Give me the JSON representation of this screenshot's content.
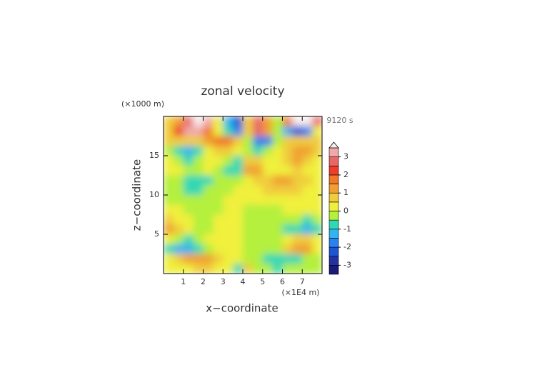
{
  "chart_data": {
    "type": "contour",
    "title": "zonal velocity",
    "y_unit": "(×1000 m)",
    "time_label": "9120 s",
    "x_unit": "(×1E4 m)",
    "xlabel": "x−coordinate",
    "ylabel": "z−coordinate",
    "xlim": [
      0,
      8
    ],
    "ylim": [
      0,
      20
    ],
    "xticks": [
      1,
      2,
      3,
      4,
      5,
      6,
      7
    ],
    "yticks": [
      5,
      10,
      15
    ],
    "x": [
      0.25,
      0.75,
      1.25,
      1.75,
      2.25,
      2.75,
      3.25,
      3.75,
      4.25,
      4.75,
      5.25,
      5.75,
      6.25,
      6.75,
      7.25,
      7.75
    ],
    "y": [
      19.375,
      18.125,
      16.875,
      15.625,
      14.375,
      13.125,
      11.875,
      10.625,
      9.375,
      8.125,
      6.875,
      5.625,
      4.375,
      3.125,
      1.875,
      0.625
    ],
    "z": [
      [
        0.5,
        1,
        2.5,
        3.6,
        3,
        0,
        -1.5,
        -2.5,
        0.5,
        2.5,
        1,
        -0.5,
        1.5,
        3.6,
        3.6,
        2.5
      ],
      [
        0.5,
        2,
        3,
        3,
        1.5,
        0,
        -1,
        -2,
        0.5,
        2.5,
        1,
        -0.5,
        -1.5,
        -2.5,
        -2,
        0
      ],
      [
        0.5,
        0.5,
        0.5,
        0.5,
        1,
        1.5,
        1.5,
        0.5,
        -0.5,
        -2,
        -2,
        -0.5,
        0.5,
        0.5,
        0.5,
        0.5
      ],
      [
        -0.5,
        -1,
        -1.5,
        -1,
        0,
        0.5,
        0.5,
        0,
        -0.5,
        -1,
        -0.5,
        0,
        0.5,
        1,
        1,
        0.5
      ],
      [
        0,
        -0.5,
        -1,
        -0.5,
        0,
        0,
        -0.5,
        -1,
        0.5,
        0.5,
        0,
        0,
        0.5,
        1,
        0.5,
        0
      ],
      [
        0,
        0,
        -0.5,
        -0.3,
        0,
        -0.3,
        -1,
        -1,
        1,
        1,
        0.3,
        0,
        0.3,
        0.5,
        0.3,
        0
      ],
      [
        -0.3,
        -0.5,
        -1,
        -1,
        -0.8,
        -0.5,
        -0.3,
        -0.2,
        0.2,
        0.5,
        0.8,
        1,
        1,
        0.8,
        0.5,
        0.3
      ],
      [
        -0.3,
        -0.5,
        -0.8,
        -0.8,
        -0.5,
        -0.3,
        -0.2,
        0.2,
        0.2,
        0.3,
        0.6,
        0.8,
        0.8,
        0.5,
        0.3,
        0.3
      ],
      [
        -0.2,
        -0.2,
        -0.2,
        -0.2,
        -0.2,
        -0.2,
        0.2,
        0.2,
        0.2,
        0.2,
        0.2,
        0.2,
        0.2,
        0.2,
        0.2,
        0.2
      ],
      [
        0.2,
        0.2,
        -0.2,
        -0.2,
        -0.2,
        -0.2,
        0.2,
        0.2,
        -0.2,
        -0.2,
        -0.2,
        -0.2,
        0.2,
        0.2,
        0.2,
        0.2
      ],
      [
        0.6,
        0.4,
        0.2,
        -0.2,
        -0.2,
        0.2,
        0.2,
        0.2,
        -0.2,
        -0.2,
        -0.2,
        -0.2,
        -0.2,
        -0.4,
        -0.6,
        -0.4
      ],
      [
        1,
        0.8,
        0.2,
        -0.2,
        -0.2,
        0.2,
        0.2,
        0.2,
        -0.2,
        -0.2,
        -0.2,
        -0.2,
        -0.6,
        -1,
        -1.2,
        -0.6
      ],
      [
        0.2,
        -0.2,
        -0.6,
        -0.2,
        0.2,
        0.2,
        0.2,
        0.2,
        -0.2,
        -0.2,
        -0.2,
        -0.2,
        0.2,
        0.6,
        0.6,
        0.2
      ],
      [
        -0.6,
        -1.2,
        -1.4,
        -0.6,
        -0.2,
        0.2,
        0.2,
        0.2,
        -0.2,
        -0.2,
        -0.2,
        -0.4,
        0.6,
        1.2,
        1,
        0.4
      ],
      [
        0.4,
        0.8,
        1.2,
        1.2,
        1,
        0.8,
        0.4,
        0.2,
        -0.2,
        -0.4,
        -0.8,
        -1,
        -1,
        -0.8,
        -0.4,
        -0.2
      ],
      [
        0.2,
        0.2,
        0.4,
        0.6,
        0.6,
        0.4,
        0.2,
        -0.6,
        0.8,
        -0.2,
        -0.4,
        -0.6,
        -0.4,
        -0.2,
        -0.2,
        -0.2
      ]
    ],
    "levels": [
      -3.5,
      -3,
      -2.5,
      -2,
      -1.5,
      -1,
      -0.5,
      0,
      0.5,
      1,
      1.5,
      2,
      2.5,
      3,
      3.5
    ],
    "colors": [
      "#1a1a78",
      "#2232a0",
      "#1e55d2",
      "#2a82f0",
      "#32b4f0",
      "#30d8b4",
      "#b4f03c",
      "#f0f03c",
      "#f0cc3c",
      "#f0a030",
      "#f07828",
      "#f03c28",
      "#e86868",
      "#f0a8a8"
    ],
    "over_color": "#f8eeee",
    "colorbar_ticks": [
      -3,
      -2,
      -1,
      0,
      1,
      2,
      3
    ]
  }
}
